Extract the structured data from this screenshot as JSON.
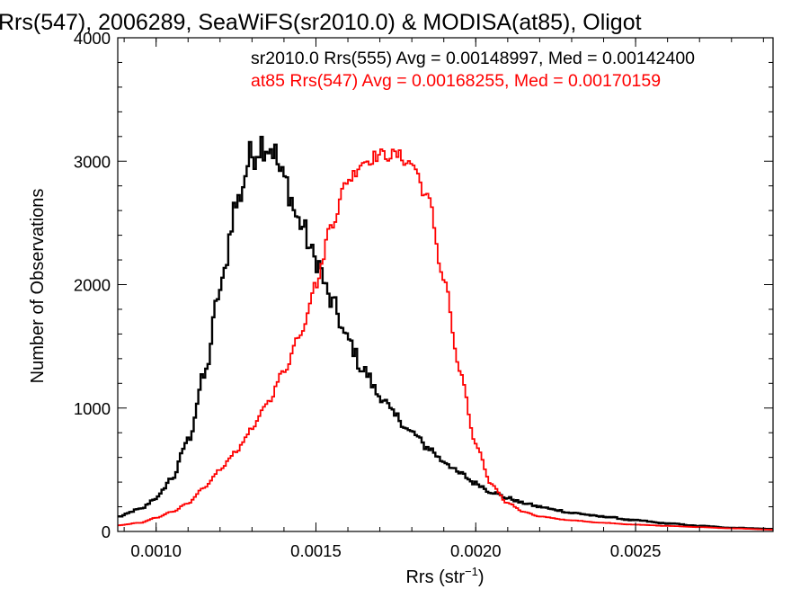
{
  "chart_data": {
    "type": "histogram-step",
    "title": "Rrs(547), 2006289, SeaWiFS(sr2010.0) & MODISA(at85), Oligot",
    "xlabel": "Rrs (str",
    "xlabel_sup": "−1",
    "xlabel_close": ")",
    "ylabel": "Number of Observations",
    "xlim": [
      0.00088,
      0.00293
    ],
    "ylim": [
      0,
      4000
    ],
    "x_ticks": [
      {
        "value": 0.001,
        "label": "0.0010"
      },
      {
        "value": 0.0015,
        "label": "0.0015"
      },
      {
        "value": 0.002,
        "label": "0.0020"
      },
      {
        "value": 0.0025,
        "label": "0.0025"
      }
    ],
    "y_ticks": [
      {
        "value": 0,
        "label": "0"
      },
      {
        "value": 1000,
        "label": "1000"
      },
      {
        "value": 2000,
        "label": "2000"
      },
      {
        "value": 3000,
        "label": "3000"
      },
      {
        "value": 4000,
        "label": "4000"
      }
    ],
    "grid": false,
    "legend_placement": "top-right",
    "series": [
      {
        "legend": "sr2010.0 Rrs(555) Avg = 0.00148997, Med = 0.00142400",
        "color": "#000000",
        "points": [
          [
            0.00088,
            120
          ],
          [
            0.00095,
            180
          ],
          [
            0.001,
            270
          ],
          [
            0.00105,
            430
          ],
          [
            0.0011,
            740
          ],
          [
            0.00115,
            1250
          ],
          [
            0.0012,
            1950
          ],
          [
            0.00125,
            2650
          ],
          [
            0.0013,
            3050
          ],
          [
            0.00133,
            3150
          ],
          [
            0.00136,
            3120
          ],
          [
            0.0014,
            2850
          ],
          [
            0.00145,
            2500
          ],
          [
            0.0015,
            2200
          ],
          [
            0.00155,
            1850
          ],
          [
            0.0016,
            1550
          ],
          [
            0.00165,
            1300
          ],
          [
            0.0017,
            1100
          ],
          [
            0.00175,
            930
          ],
          [
            0.0018,
            800
          ],
          [
            0.00185,
            680
          ],
          [
            0.0019,
            570
          ],
          [
            0.00195,
            470
          ],
          [
            0.002,
            390
          ],
          [
            0.00205,
            320
          ],
          [
            0.0021,
            270
          ],
          [
            0.00215,
            230
          ],
          [
            0.0022,
            200
          ],
          [
            0.00225,
            175
          ],
          [
            0.0023,
            150
          ],
          [
            0.0024,
            120
          ],
          [
            0.0025,
            90
          ],
          [
            0.0026,
            65
          ],
          [
            0.0027,
            45
          ],
          [
            0.0028,
            30
          ],
          [
            0.00293,
            20
          ]
        ]
      },
      {
        "legend": "at85 Rrs(547) Avg = 0.00168255, Med = 0.00170159",
        "color": "#ff0000",
        "points": [
          [
            0.00088,
            50
          ],
          [
            0.00095,
            70
          ],
          [
            0.001,
            110
          ],
          [
            0.00105,
            160
          ],
          [
            0.0011,
            230
          ],
          [
            0.00115,
            350
          ],
          [
            0.0012,
            500
          ],
          [
            0.00125,
            650
          ],
          [
            0.0013,
            830
          ],
          [
            0.00135,
            1050
          ],
          [
            0.0014,
            1300
          ],
          [
            0.00145,
            1600
          ],
          [
            0.0015,
            2000
          ],
          [
            0.00155,
            2500
          ],
          [
            0.0016,
            2850
          ],
          [
            0.00165,
            3000
          ],
          [
            0.0017,
            3050
          ],
          [
            0.00175,
            3050
          ],
          [
            0.0018,
            2980
          ],
          [
            0.00185,
            2700
          ],
          [
            0.0019,
            2050
          ],
          [
            0.00195,
            1300
          ],
          [
            0.002,
            700
          ],
          [
            0.00205,
            380
          ],
          [
            0.0021,
            230
          ],
          [
            0.00215,
            160
          ],
          [
            0.0022,
            120
          ],
          [
            0.0023,
            90
          ],
          [
            0.0024,
            70
          ],
          [
            0.0025,
            55
          ],
          [
            0.0026,
            45
          ],
          [
            0.0027,
            35
          ],
          [
            0.0028,
            25
          ],
          [
            0.00293,
            15
          ]
        ]
      }
    ]
  }
}
